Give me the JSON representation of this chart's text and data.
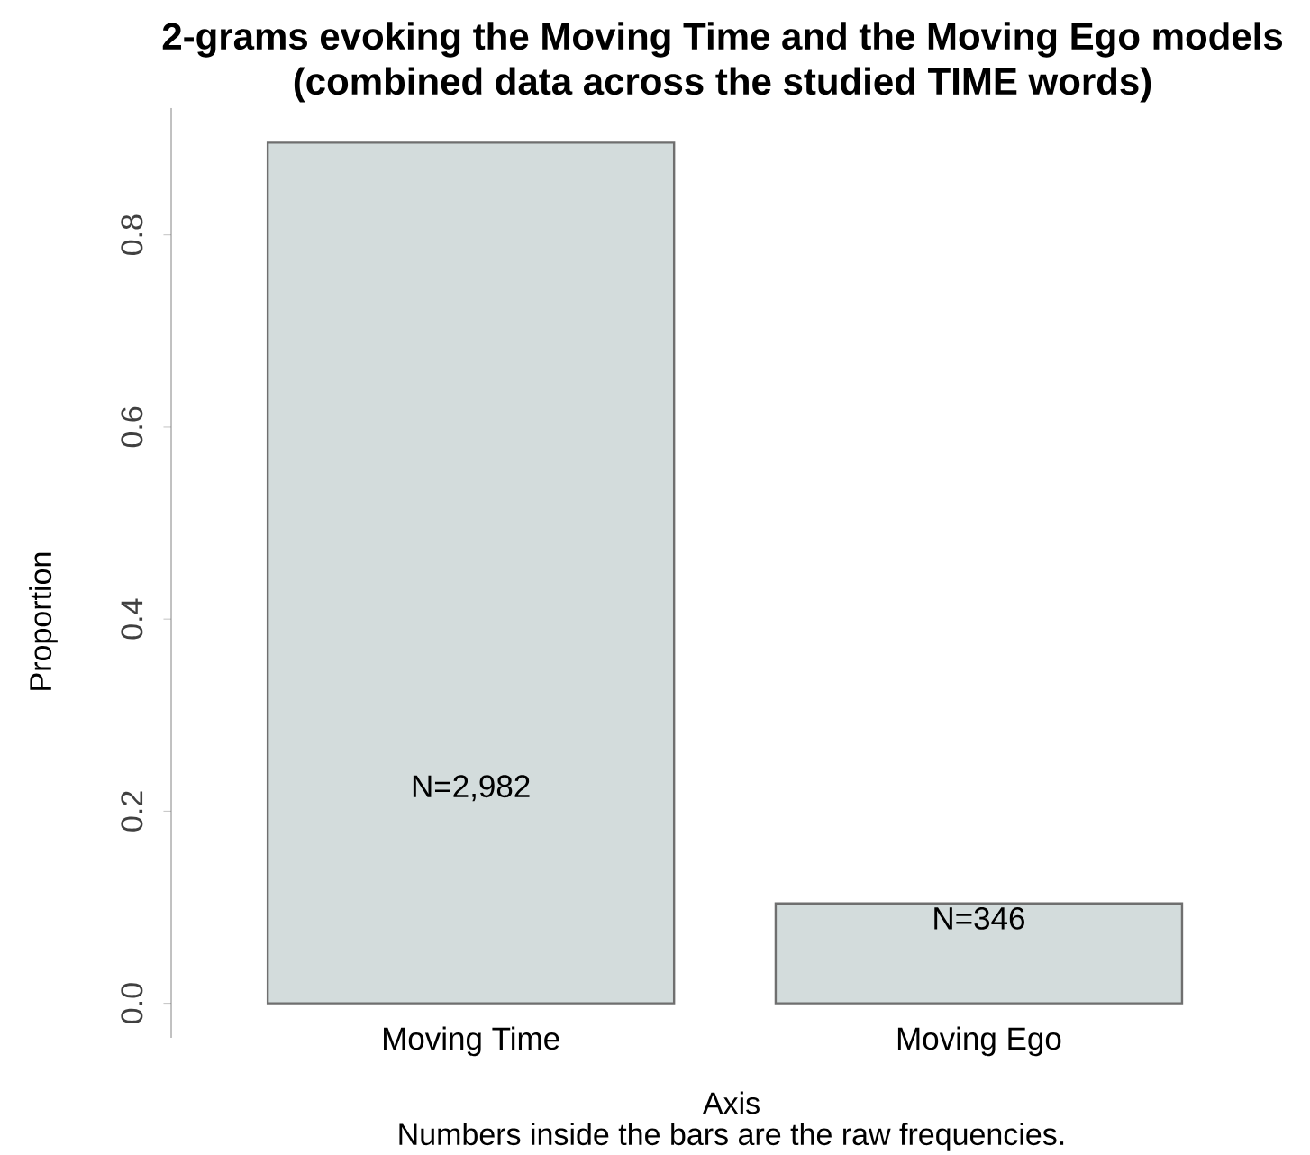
{
  "chart_data": {
    "type": "bar",
    "title": "2-grams evoking the Moving Time and the Moving Ego models",
    "subtitle": "(combined data across the studied TIME words)",
    "xlabel": "Axis",
    "ylabel": "Proportion",
    "categories": [
      "Moving Time",
      "Moving Ego"
    ],
    "values": [
      0.896,
      0.104
    ],
    "color": "#d3dcdc",
    "ylim": [
      -0.036,
      0.932
    ],
    "yticks": [
      {
        "value": 0,
        "label": "0.0"
      },
      {
        "value": 0.2,
        "label": "0.2"
      },
      {
        "value": 0.4,
        "label": "0.4"
      },
      {
        "value": 0.6,
        "label": "0.6"
      },
      {
        "value": 0.8,
        "label": "0.8"
      }
    ],
    "grid": false,
    "annotations": [
      "N=2,982",
      "N=346",
      "Numbers inside the bars are the raw frequencies."
    ]
  }
}
